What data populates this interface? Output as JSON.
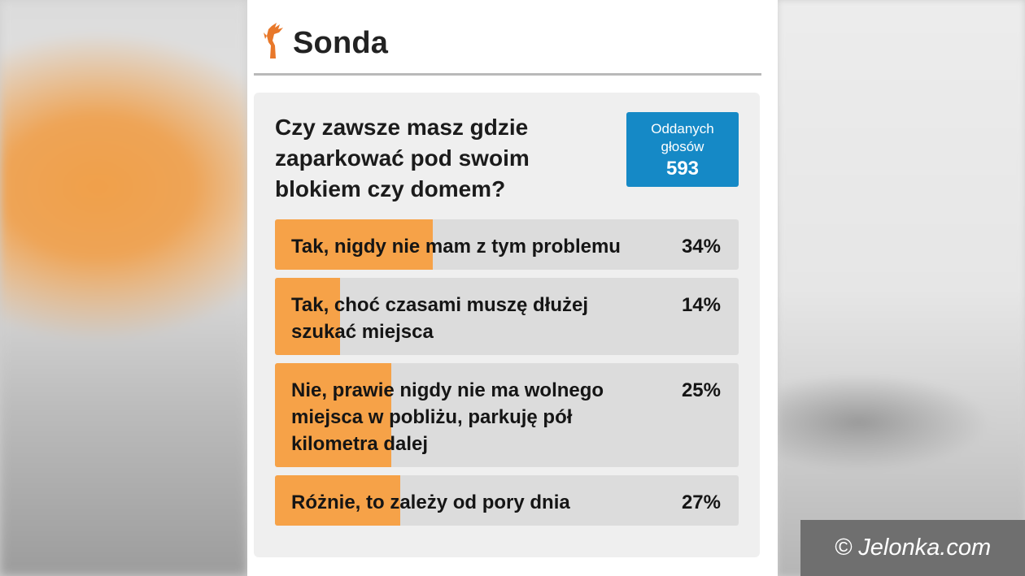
{
  "header": {
    "title": "Sonda",
    "logo_icon": "deer-icon"
  },
  "poll": {
    "question": "Czy zawsze masz gdzie zaparkować pod swoim blokiem czy domem?",
    "votes_label": "Oddanych głosów",
    "votes_count": "593",
    "answers": [
      {
        "label": "Tak, nigdy nie mam z tym problemu",
        "percent_label": "34%",
        "percent": 34
      },
      {
        "label": "Tak, choć czasami muszę dłużej szukać miejsca",
        "percent_label": "14%",
        "percent": 14
      },
      {
        "label": "Nie, prawie nigdy nie ma wolnego miejsca w pobliżu, parkuję pół kilometra dalej",
        "percent_label": "25%",
        "percent": 25
      },
      {
        "label": "Różnie, to zależy od pory dnia",
        "percent_label": "27%",
        "percent": 27
      }
    ]
  },
  "copyright": "© Jelonka.com",
  "colors": {
    "bar_fill": "#f6a248",
    "bar_bg": "#dcdcdc",
    "votes_bg": "#1589c6",
    "logo": "#e8782a"
  }
}
